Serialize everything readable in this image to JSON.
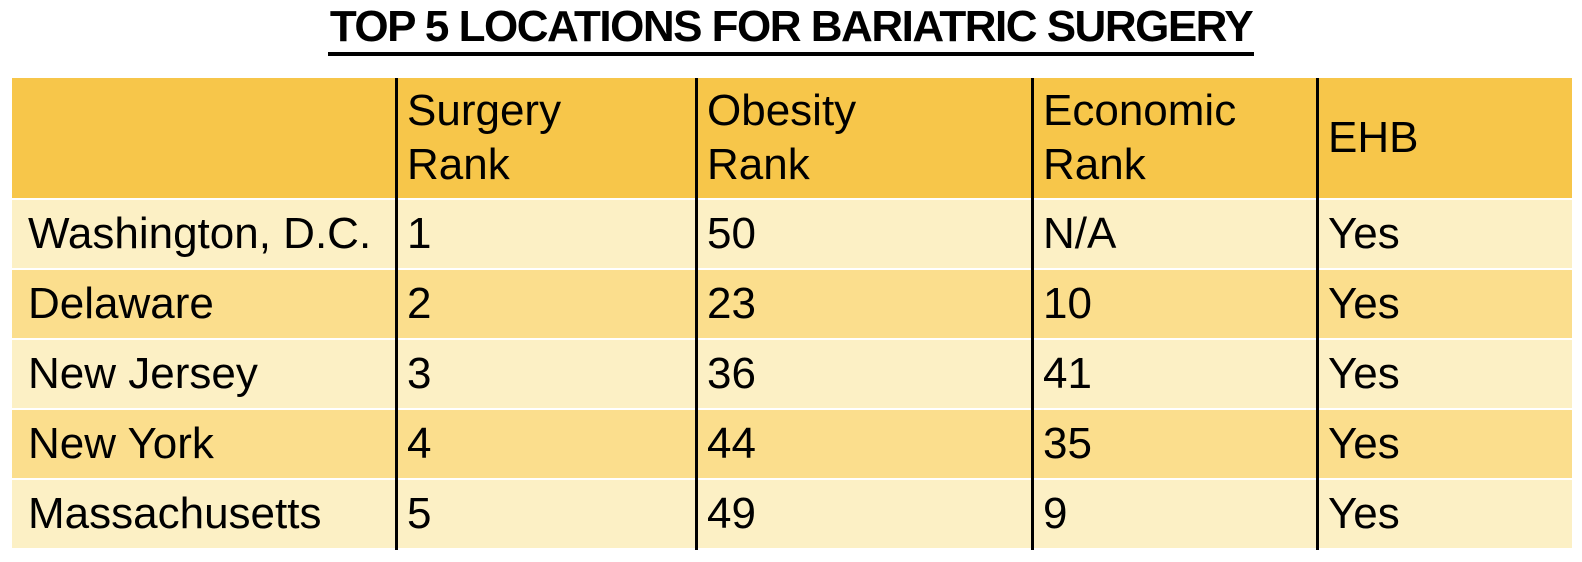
{
  "title": "TOP 5 LOCATIONS FOR BARIATRIC SURGERY",
  "table": {
    "headers": [
      "",
      "Surgery\nRank",
      "Obesity\nRank",
      "Economic\nRank",
      "EHB"
    ],
    "rows": [
      {
        "location": "Washington, D.C.",
        "surgery_rank": "1",
        "obesity_rank": "50",
        "economic_rank": "N/A",
        "ehb": "Yes"
      },
      {
        "location": "Delaware",
        "surgery_rank": "2",
        "obesity_rank": "23",
        "economic_rank": "10",
        "ehb": "Yes"
      },
      {
        "location": "New Jersey",
        "surgery_rank": "3",
        "obesity_rank": "36",
        "economic_rank": "41",
        "ehb": "Yes"
      },
      {
        "location": "New York",
        "surgery_rank": "4",
        "obesity_rank": "44",
        "economic_rank": "35",
        "ehb": "Yes"
      },
      {
        "location": "Massachusetts",
        "surgery_rank": "5",
        "obesity_rank": "49",
        "economic_rank": "9",
        "ehb": "Yes"
      }
    ]
  },
  "colors": {
    "header_bg": "#F7C64A",
    "row_light": "#FCF0C5",
    "row_dark": "#FBDE8D",
    "divider": "#000000",
    "text": "#000000",
    "background": "#FFFFFF"
  },
  "chart_data": {
    "type": "table",
    "title": "TOP 5 LOCATIONS FOR BARIATRIC SURGERY",
    "columns": [
      "",
      "Surgery Rank",
      "Obesity Rank",
      "Economic Rank",
      "EHB"
    ],
    "rows": [
      [
        "Washington, D.C.",
        "1",
        "50",
        "N/A",
        "Yes"
      ],
      [
        "Delaware",
        "2",
        "23",
        "10",
        "Yes"
      ],
      [
        "New Jersey",
        "3",
        "36",
        "41",
        "Yes"
      ],
      [
        "New York",
        "4",
        "44",
        "35",
        "Yes"
      ],
      [
        "Massachusetts",
        "5",
        "49",
        "9",
        "Yes"
      ]
    ],
    "layout_hints": {
      "header_fill": "#F7C64A",
      "row_stripe_light": "#FCF0C5",
      "row_stripe_dark": "#FBDE8D",
      "column_dividers": true,
      "title_underlined": true
    }
  }
}
